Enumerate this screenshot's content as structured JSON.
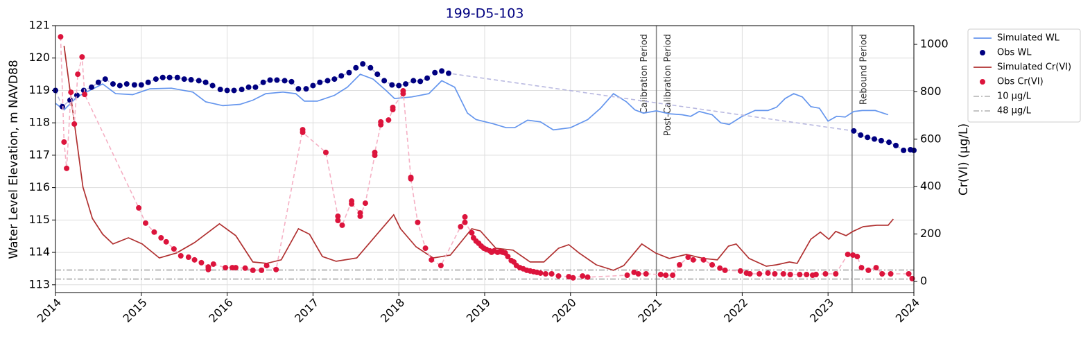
{
  "chart_data": {
    "type": "combo",
    "title": "199-D5-103",
    "y_label": "Water Level Elevation, m NAVD88",
    "y2_label": "Cr(VI) (µg/L)",
    "xlim": [
      2014,
      2024
    ],
    "xticks": [
      2014,
      2015,
      2016,
      2017,
      2018,
      2019,
      2020,
      2021,
      2022,
      2023,
      2024
    ],
    "ylim": [
      112.76,
      121
    ],
    "yticks": [
      113,
      114,
      115,
      116,
      117,
      118,
      119,
      120,
      121
    ],
    "y2lim": [
      -47,
      1079
    ],
    "y2ticks": [
      0,
      200,
      400,
      600,
      800,
      1000
    ],
    "grid": true,
    "legend": "outside-upper-right",
    "series": [
      {
        "name": "Simulated WL",
        "type": "line",
        "color": "#6495ed",
        "axis": "y",
        "x": [
          2014.0,
          2014.1,
          2014.25,
          2014.4,
          2014.55,
          2014.7,
          2014.9,
          2015.1,
          2015.35,
          2015.6,
          2015.75,
          2015.95,
          2016.15,
          2016.3,
          2016.45,
          2016.65,
          2016.8,
          2016.9,
          2017.05,
          2017.25,
          2017.4,
          2017.55,
          2017.7,
          2017.85,
          2017.95,
          2018.15,
          2018.35,
          2018.5,
          2018.65,
          2018.8,
          2018.9,
          2019.1,
          2019.25,
          2019.35,
          2019.5,
          2019.65,
          2019.8,
          2020.0,
          2020.2,
          2020.35,
          2020.5,
          2020.65,
          2020.75,
          2020.85,
          2021.0,
          2021.15,
          2021.3,
          2021.4,
          2021.5,
          2021.65,
          2021.75,
          2021.85,
          2022.0,
          2022.15,
          2022.3,
          2022.4,
          2022.5,
          2022.6,
          2022.7,
          2022.8,
          2022.9,
          2023.0,
          2023.1,
          2023.2,
          2023.3,
          2023.4,
          2023.55,
          2023.7
        ],
        "values": [
          118.6,
          118.4,
          118.8,
          119.0,
          119.2,
          118.9,
          118.87,
          119.05,
          119.07,
          118.95,
          118.65,
          118.53,
          118.57,
          118.7,
          118.9,
          118.95,
          118.9,
          118.67,
          118.67,
          118.85,
          119.1,
          119.5,
          119.35,
          119.0,
          118.75,
          118.8,
          118.9,
          119.3,
          119.1,
          118.3,
          118.1,
          117.97,
          117.85,
          117.85,
          118.08,
          118.03,
          117.78,
          117.85,
          118.1,
          118.45,
          118.9,
          118.65,
          118.4,
          118.3,
          118.37,
          118.28,
          118.25,
          118.2,
          118.35,
          118.25,
          118.0,
          117.95,
          118.2,
          118.38,
          118.38,
          118.48,
          118.75,
          118.9,
          118.8,
          118.5,
          118.45,
          118.05,
          118.2,
          118.18,
          118.35,
          118.38,
          118.38,
          118.25
        ]
      },
      {
        "name": "Obs WL",
        "type": "scatter",
        "color": "#000080",
        "line_color": "#b8b8e0",
        "axis": "y",
        "x": [
          2014.0,
          2014.08,
          2014.17,
          2014.25,
          2014.33,
          2014.42,
          2014.5,
          2014.58,
          2014.67,
          2014.75,
          2014.83,
          2014.92,
          2015.0,
          2015.08,
          2015.17,
          2015.25,
          2015.33,
          2015.42,
          2015.5,
          2015.58,
          2015.67,
          2015.75,
          2015.83,
          2015.92,
          2016.0,
          2016.08,
          2016.17,
          2016.25,
          2016.33,
          2016.42,
          2016.5,
          2016.58,
          2016.67,
          2016.75,
          2016.83,
          2016.92,
          2017.0,
          2017.08,
          2017.17,
          2017.25,
          2017.33,
          2017.42,
          2017.5,
          2017.58,
          2017.67,
          2017.75,
          2017.83,
          2017.92,
          2018.0,
          2018.08,
          2018.17,
          2018.25,
          2018.33,
          2018.42,
          2018.5,
          2018.58,
          2023.3,
          2023.38,
          2023.46,
          2023.54,
          2023.62,
          2023.71,
          2023.79,
          2023.88,
          2023.96,
          2024.0
        ],
        "values": [
          119.0,
          118.5,
          118.7,
          118.85,
          119.0,
          119.1,
          119.25,
          119.35,
          119.2,
          119.15,
          119.2,
          119.17,
          119.17,
          119.25,
          119.35,
          119.4,
          119.4,
          119.4,
          119.35,
          119.33,
          119.3,
          119.25,
          119.15,
          119.03,
          119.0,
          119.0,
          119.03,
          119.1,
          119.1,
          119.25,
          119.32,
          119.32,
          119.3,
          119.27,
          119.05,
          119.05,
          119.15,
          119.25,
          119.3,
          119.35,
          119.45,
          119.55,
          119.7,
          119.82,
          119.7,
          119.5,
          119.3,
          119.17,
          119.15,
          119.2,
          119.3,
          119.28,
          119.38,
          119.55,
          119.6,
          119.53,
          117.75,
          117.62,
          117.55,
          117.5,
          117.45,
          117.4,
          117.3,
          117.15,
          117.17,
          117.15
        ]
      },
      {
        "name": "Simulated Cr(VI)",
        "type": "line",
        "color": "#b03030",
        "axis": "y2",
        "x": [
          2014.1,
          2014.32,
          2014.43,
          2014.55,
          2014.67,
          2014.85,
          2015.01,
          2015.21,
          2015.41,
          2015.62,
          2015.91,
          2016.1,
          2016.3,
          2016.46,
          2016.63,
          2016.83,
          2016.96,
          2017.11,
          2017.27,
          2017.51,
          2017.76,
          2017.94,
          2018.02,
          2018.2,
          2018.4,
          2018.6,
          2018.85,
          2018.95,
          2019.13,
          2019.33,
          2019.53,
          2019.69,
          2019.86,
          2019.98,
          2020.1,
          2020.3,
          2020.5,
          2020.62,
          2020.83,
          2020.99,
          2021.15,
          2021.35,
          2021.55,
          2021.71,
          2021.84,
          2021.93,
          2022.08,
          2022.28,
          2022.4,
          2022.55,
          2022.64,
          2022.8,
          2022.91,
          2023.01,
          2023.09,
          2023.21,
          2023.29,
          2023.41,
          2023.57,
          2023.7,
          2023.76
        ],
        "values": [
          994,
          398,
          266,
          199,
          158,
          184,
          158,
          99,
          120,
          164,
          243,
          193,
          82,
          76,
          91,
          222,
          199,
          105,
          85,
          99,
          205,
          281,
          222,
          146,
          99,
          111,
          222,
          213,
          140,
          132,
          82,
          82,
          140,
          155,
          120,
          70,
          47,
          67,
          158,
          120,
          97,
          114,
          97,
          91,
          149,
          158,
          97,
          64,
          70,
          82,
          76,
          178,
          208,
          178,
          211,
          193,
          211,
          231,
          237,
          237,
          263
        ]
      },
      {
        "name": "Obs Cr(VI)",
        "type": "scatter",
        "color": "#dc143c",
        "line_color": "#f5b0c4",
        "axis": "y2",
        "x": [
          2014.06,
          2014.1,
          2014.13,
          2014.18,
          2014.22,
          2014.26,
          2014.31,
          2014.34,
          2014.97,
          2015.05,
          2015.15,
          2015.23,
          2015.29,
          2015.38,
          2015.46,
          2015.55,
          2015.62,
          2015.7,
          2015.78,
          2015.78,
          2015.84,
          2015.98,
          2016.06,
          2016.1,
          2016.21,
          2016.3,
          2016.4,
          2016.46,
          2016.57,
          2016.88,
          2016.88,
          2017.15,
          2017.29,
          2017.29,
          2017.34,
          2017.45,
          2017.45,
          2017.55,
          2017.55,
          2017.61,
          2017.72,
          2017.72,
          2017.79,
          2017.79,
          2017.88,
          2017.93,
          2017.93,
          2018.05,
          2018.05,
          2018.14,
          2018.14,
          2018.22,
          2018.31,
          2018.38,
          2018.49,
          2018.72,
          2018.77,
          2018.77,
          2018.85,
          2018.87,
          2018.9,
          2018.93,
          2018.96,
          2018.99,
          2019.02,
          2019.06,
          2019.08,
          2019.11,
          2019.15,
          2019.18,
          2019.21,
          2019.24,
          2019.27,
          2019.31,
          2019.34,
          2019.37,
          2019.41,
          2019.45,
          2019.49,
          2019.53,
          2019.57,
          2019.61,
          2019.65,
          2019.71,
          2019.78,
          2019.86,
          2019.98,
          2020.03,
          2020.14,
          2020.2,
          2020.66,
          2020.74,
          2020.79,
          2020.88,
          2021.05,
          2021.11,
          2021.19,
          2021.27,
          2021.37,
          2021.43,
          2021.55,
          2021.65,
          2021.74,
          2021.8,
          2021.98,
          2022.05,
          2022.09,
          2022.2,
          2022.3,
          2022.38,
          2022.48,
          2022.56,
          2022.67,
          2022.75,
          2022.82,
          2022.86,
          2022.97,
          2023.09,
          2023.23,
          2023.29,
          2023.34,
          2023.39,
          2023.47,
          2023.56,
          2023.63,
          2023.73,
          2023.94,
          2023.98
        ],
        "values": [
          1032,
          588,
          477,
          798,
          664,
          874,
          947,
          789,
          310,
          246,
          208,
          184,
          167,
          137,
          108,
          102,
          91,
          79,
          61,
          50,
          73,
          58,
          58,
          58,
          56,
          47,
          47,
          67,
          50,
          640,
          629,
          544,
          275,
          257,
          237,
          339,
          327,
          289,
          275,
          330,
          532,
          544,
          661,
          673,
          681,
          725,
          734,
          792,
          804,
          439,
          433,
          249,
          140,
          91,
          67,
          231,
          272,
          249,
          205,
          184,
          170,
          161,
          149,
          140,
          135,
          129,
          123,
          129,
          123,
          126,
          123,
          120,
          105,
          88,
          82,
          67,
          58,
          53,
          47,
          44,
          41,
          38,
          35,
          32,
          32,
          23,
          20,
          15,
          23,
          18,
          26,
          38,
          32,
          32,
          29,
          26,
          26,
          70,
          102,
          91,
          91,
          70,
          56,
          47,
          44,
          35,
          32,
          32,
          35,
          32,
          32,
          29,
          29,
          29,
          26,
          29,
          32,
          32,
          114,
          111,
          105,
          58,
          47,
          58,
          32,
          32,
          32,
          12
        ]
      }
    ],
    "reference_lines": [
      {
        "name": "10 µg/L",
        "value": 10,
        "axis": "y2",
        "color": "#888888"
      },
      {
        "name": "48 µg/L",
        "value": 48,
        "axis": "y2",
        "color": "#888888"
      }
    ],
    "vlines": [
      {
        "x": 2021.0,
        "left": "Calibration Period",
        "right": "Post-Calibration Period",
        "color": "#808080"
      },
      {
        "x": 2023.28,
        "right": "Rebound Period",
        "color": "#808080"
      }
    ]
  }
}
